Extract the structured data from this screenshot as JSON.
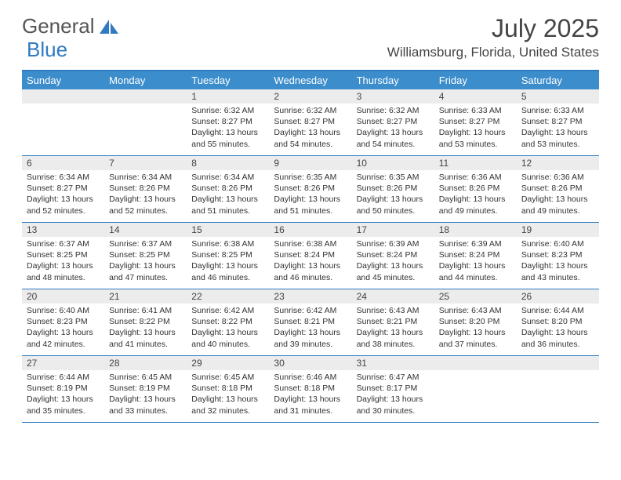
{
  "brand": {
    "part1": "General",
    "part2": "Blue"
  },
  "title": "July 2025",
  "location": "Williamsburg, Florida, United States",
  "colors": {
    "header_bg": "#3c8dcc",
    "accent": "#2f7ac0",
    "daynum_bg": "#ececec",
    "text": "#333333"
  },
  "day_names": [
    "Sunday",
    "Monday",
    "Tuesday",
    "Wednesday",
    "Thursday",
    "Friday",
    "Saturday"
  ],
  "weeks": [
    [
      {
        "day": "",
        "sunrise": "",
        "sunset": "",
        "daylight": ""
      },
      {
        "day": "",
        "sunrise": "",
        "sunset": "",
        "daylight": ""
      },
      {
        "day": "1",
        "sunrise": "6:32 AM",
        "sunset": "8:27 PM",
        "daylight": "13 hours and 55 minutes."
      },
      {
        "day": "2",
        "sunrise": "6:32 AM",
        "sunset": "8:27 PM",
        "daylight": "13 hours and 54 minutes."
      },
      {
        "day": "3",
        "sunrise": "6:32 AM",
        "sunset": "8:27 PM",
        "daylight": "13 hours and 54 minutes."
      },
      {
        "day": "4",
        "sunrise": "6:33 AM",
        "sunset": "8:27 PM",
        "daylight": "13 hours and 53 minutes."
      },
      {
        "day": "5",
        "sunrise": "6:33 AM",
        "sunset": "8:27 PM",
        "daylight": "13 hours and 53 minutes."
      }
    ],
    [
      {
        "day": "6",
        "sunrise": "6:34 AM",
        "sunset": "8:27 PM",
        "daylight": "13 hours and 52 minutes."
      },
      {
        "day": "7",
        "sunrise": "6:34 AM",
        "sunset": "8:26 PM",
        "daylight": "13 hours and 52 minutes."
      },
      {
        "day": "8",
        "sunrise": "6:34 AM",
        "sunset": "8:26 PM",
        "daylight": "13 hours and 51 minutes."
      },
      {
        "day": "9",
        "sunrise": "6:35 AM",
        "sunset": "8:26 PM",
        "daylight": "13 hours and 51 minutes."
      },
      {
        "day": "10",
        "sunrise": "6:35 AM",
        "sunset": "8:26 PM",
        "daylight": "13 hours and 50 minutes."
      },
      {
        "day": "11",
        "sunrise": "6:36 AM",
        "sunset": "8:26 PM",
        "daylight": "13 hours and 49 minutes."
      },
      {
        "day": "12",
        "sunrise": "6:36 AM",
        "sunset": "8:26 PM",
        "daylight": "13 hours and 49 minutes."
      }
    ],
    [
      {
        "day": "13",
        "sunrise": "6:37 AM",
        "sunset": "8:25 PM",
        "daylight": "13 hours and 48 minutes."
      },
      {
        "day": "14",
        "sunrise": "6:37 AM",
        "sunset": "8:25 PM",
        "daylight": "13 hours and 47 minutes."
      },
      {
        "day": "15",
        "sunrise": "6:38 AM",
        "sunset": "8:25 PM",
        "daylight": "13 hours and 46 minutes."
      },
      {
        "day": "16",
        "sunrise": "6:38 AM",
        "sunset": "8:24 PM",
        "daylight": "13 hours and 46 minutes."
      },
      {
        "day": "17",
        "sunrise": "6:39 AM",
        "sunset": "8:24 PM",
        "daylight": "13 hours and 45 minutes."
      },
      {
        "day": "18",
        "sunrise": "6:39 AM",
        "sunset": "8:24 PM",
        "daylight": "13 hours and 44 minutes."
      },
      {
        "day": "19",
        "sunrise": "6:40 AM",
        "sunset": "8:23 PM",
        "daylight": "13 hours and 43 minutes."
      }
    ],
    [
      {
        "day": "20",
        "sunrise": "6:40 AM",
        "sunset": "8:23 PM",
        "daylight": "13 hours and 42 minutes."
      },
      {
        "day": "21",
        "sunrise": "6:41 AM",
        "sunset": "8:22 PM",
        "daylight": "13 hours and 41 minutes."
      },
      {
        "day": "22",
        "sunrise": "6:42 AM",
        "sunset": "8:22 PM",
        "daylight": "13 hours and 40 minutes."
      },
      {
        "day": "23",
        "sunrise": "6:42 AM",
        "sunset": "8:21 PM",
        "daylight": "13 hours and 39 minutes."
      },
      {
        "day": "24",
        "sunrise": "6:43 AM",
        "sunset": "8:21 PM",
        "daylight": "13 hours and 38 minutes."
      },
      {
        "day": "25",
        "sunrise": "6:43 AM",
        "sunset": "8:20 PM",
        "daylight": "13 hours and 37 minutes."
      },
      {
        "day": "26",
        "sunrise": "6:44 AM",
        "sunset": "8:20 PM",
        "daylight": "13 hours and 36 minutes."
      }
    ],
    [
      {
        "day": "27",
        "sunrise": "6:44 AM",
        "sunset": "8:19 PM",
        "daylight": "13 hours and 35 minutes."
      },
      {
        "day": "28",
        "sunrise": "6:45 AM",
        "sunset": "8:19 PM",
        "daylight": "13 hours and 33 minutes."
      },
      {
        "day": "29",
        "sunrise": "6:45 AM",
        "sunset": "8:18 PM",
        "daylight": "13 hours and 32 minutes."
      },
      {
        "day": "30",
        "sunrise": "6:46 AM",
        "sunset": "8:18 PM",
        "daylight": "13 hours and 31 minutes."
      },
      {
        "day": "31",
        "sunrise": "6:47 AM",
        "sunset": "8:17 PM",
        "daylight": "13 hours and 30 minutes."
      },
      {
        "day": "",
        "sunrise": "",
        "sunset": "",
        "daylight": ""
      },
      {
        "day": "",
        "sunrise": "",
        "sunset": "",
        "daylight": ""
      }
    ]
  ]
}
